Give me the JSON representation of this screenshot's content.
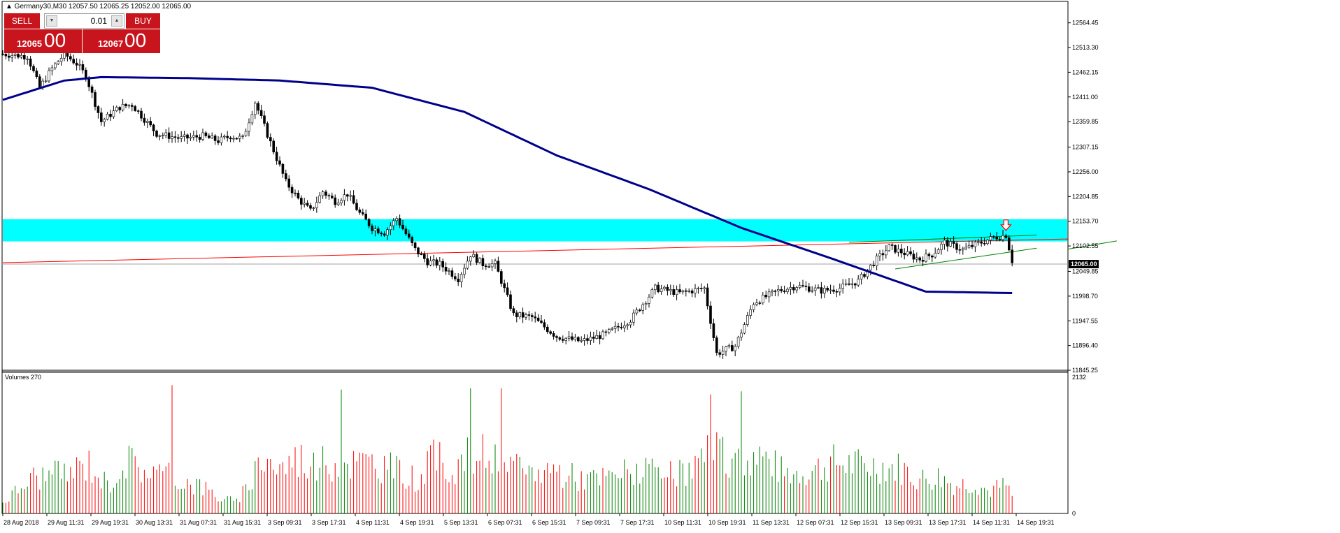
{
  "header": {
    "symbol": "Germany30,M30",
    "ohlc": "12057.50 12065.25 12052.00 12065.00"
  },
  "trade_panel": {
    "sell_label": "SELL",
    "buy_label": "BUY",
    "lot_value": "0.01",
    "sell_main": "12065",
    "sell_sup": "00",
    "buy_main": "12067",
    "buy_sup": "00"
  },
  "price_axis": {
    "labels": [
      "12564.45",
      "12513.30",
      "12462.15",
      "12411.00",
      "12359.85",
      "12307.15",
      "12256.00",
      "12204.85",
      "12153.70",
      "12102.55",
      "12049.85",
      "11998.70",
      "11947.55",
      "11896.40",
      "11845.25"
    ],
    "current_price": "12065.00"
  },
  "volume_panel": {
    "title": "Volumes 270",
    "max_label": "2132",
    "min_label": "0"
  },
  "time_axis": {
    "labels": [
      "28 Aug 2018",
      "29 Aug 11:31",
      "29 Aug 19:31",
      "30 Aug 13:31",
      "31 Aug 07:31",
      "31 Aug 15:31",
      "3 Sep 09:31",
      "3 Sep 17:31",
      "4 Sep 11:31",
      "4 Sep 19:31",
      "5 Sep 13:31",
      "6 Sep 07:31",
      "6 Sep 15:31",
      "7 Sep 09:31",
      "7 Sep 17:31",
      "10 Sep 11:31",
      "10 Sep 19:31",
      "11 Sep 13:31",
      "12 Sep 07:31",
      "12 Sep 15:31",
      "13 Sep 09:31",
      "13 Sep 17:31",
      "14 Sep 11:31",
      "14 Sep 19:31"
    ]
  },
  "colors": {
    "bull": "#008000",
    "bear": "#ff0000",
    "candle_body": "#000000",
    "ma_line": "#00008b",
    "zone": "#00ffff",
    "trendline_red": "#ff0000",
    "trendline_green": "#008000",
    "sell_buy_bg": "#c8141d"
  },
  "chart_data": {
    "type": "candlestick",
    "symbol": "Germany30",
    "timeframe": "M30",
    "ylim": [
      11845.25,
      12590
    ],
    "price_path": [
      [
        0,
        12500
      ],
      [
        8,
        12495
      ],
      [
        12,
        12430
      ],
      [
        16,
        12470
      ],
      [
        20,
        12500
      ],
      [
        24,
        12480
      ],
      [
        27,
        12455
      ],
      [
        32,
        12360
      ],
      [
        38,
        12390
      ],
      [
        42,
        12395
      ],
      [
        50,
        12335
      ],
      [
        58,
        12325
      ],
      [
        65,
        12330
      ],
      [
        70,
        12320
      ],
      [
        74,
        12330
      ],
      [
        78,
        12325
      ],
      [
        82,
        12400
      ],
      [
        88,
        12300
      ],
      [
        92,
        12235
      ],
      [
        96,
        12200
      ],
      [
        100,
        12175
      ],
      [
        104,
        12215
      ],
      [
        108,
        12195
      ],
      [
        112,
        12210
      ],
      [
        116,
        12170
      ],
      [
        120,
        12140
      ],
      [
        124,
        12130
      ],
      [
        128,
        12160
      ],
      [
        134,
        12095
      ],
      [
        138,
        12070
      ],
      [
        142,
        12065
      ],
      [
        148,
        12035
      ],
      [
        152,
        12085
      ],
      [
        156,
        12065
      ],
      [
        160,
        12065
      ],
      [
        166,
        11960
      ],
      [
        172,
        11955
      ],
      [
        180,
        11915
      ],
      [
        188,
        11905
      ],
      [
        196,
        11920
      ],
      [
        204,
        11950
      ],
      [
        212,
        12015
      ],
      [
        220,
        12005
      ],
      [
        228,
        12015
      ],
      [
        232,
        11880
      ],
      [
        238,
        11895
      ],
      [
        244,
        11985
      ],
      [
        252,
        12010
      ],
      [
        258,
        12020
      ],
      [
        266,
        12010
      ],
      [
        272,
        12015
      ],
      [
        278,
        12030
      ],
      [
        284,
        12075
      ],
      [
        288,
        12100
      ],
      [
        292,
        12090
      ],
      [
        298,
        12075
      ],
      [
        302,
        12085
      ],
      [
        306,
        12110
      ],
      [
        312,
        12095
      ],
      [
        318,
        12110
      ],
      [
        322,
        12120
      ],
      [
        326,
        12125
      ],
      [
        328,
        12072
      ]
    ],
    "volume_path": [
      [
        0,
        200
      ],
      [
        10,
        650
      ],
      [
        20,
        700
      ],
      [
        28,
        900
      ],
      [
        34,
        500
      ],
      [
        40,
        950
      ],
      [
        46,
        800
      ],
      [
        52,
        700
      ],
      [
        58,
        600
      ],
      [
        64,
        500
      ],
      [
        70,
        300
      ],
      [
        76,
        200
      ],
      [
        80,
        500
      ],
      [
        84,
        1050
      ],
      [
        90,
        800
      ],
      [
        96,
        1000
      ],
      [
        102,
        850
      ],
      [
        110,
        950
      ],
      [
        116,
        900
      ],
      [
        122,
        900
      ],
      [
        130,
        700
      ],
      [
        136,
        600
      ],
      [
        140,
        1000
      ],
      [
        146,
        800
      ],
      [
        152,
        1050
      ],
      [
        158,
        1050
      ],
      [
        162,
        900
      ],
      [
        170,
        700
      ],
      [
        178,
        800
      ],
      [
        186,
        650
      ],
      [
        194,
        600
      ],
      [
        200,
        700
      ],
      [
        206,
        800
      ],
      [
        214,
        650
      ],
      [
        222,
        700
      ],
      [
        230,
        1100
      ],
      [
        238,
        900
      ],
      [
        246,
        1050
      ],
      [
        254,
        700
      ],
      [
        262,
        750
      ],
      [
        270,
        900
      ],
      [
        278,
        850
      ],
      [
        284,
        850
      ],
      [
        292,
        800
      ],
      [
        298,
        600
      ],
      [
        304,
        650
      ],
      [
        310,
        500
      ],
      [
        316,
        550
      ],
      [
        320,
        400
      ],
      [
        326,
        500
      ],
      [
        328,
        300
      ]
    ],
    "volume_peaks": [
      [
        55,
        2050
      ],
      [
        110,
        1980
      ],
      [
        152,
        2000
      ],
      [
        162,
        2000
      ],
      [
        230,
        1900
      ],
      [
        240,
        1950
      ]
    ],
    "moving_average": {
      "type": "SMA-like",
      "points": [
        [
          0,
          12405
        ],
        [
          20,
          12445
        ],
        [
          32,
          12452
        ],
        [
          60,
          12450
        ],
        [
          90,
          12445
        ],
        [
          120,
          12430
        ],
        [
          150,
          12380
        ],
        [
          180,
          12290
        ],
        [
          210,
          12220
        ],
        [
          240,
          12140
        ],
        [
          270,
          12075
        ],
        [
          300,
          12008
        ],
        [
          328,
          12005
        ]
      ]
    },
    "supply_zone": {
      "low": 12112,
      "high": 12158
    },
    "trendlines": [
      {
        "color": "red",
        "from": [
          0,
          12068
        ],
        "to": [
          420,
          12117
        ]
      },
      {
        "color": "green",
        "from": [
          275,
          12110
        ],
        "to": [
          336,
          12125
        ]
      },
      {
        "color": "green",
        "from": [
          290,
          12055
        ],
        "to": [
          336,
          12098
        ]
      },
      {
        "color": "green",
        "from": [
          362,
          12113
        ],
        "to": [
          420,
          12096
        ]
      }
    ],
    "arrow_marker": {
      "index": 326,
      "price": 12142,
      "direction": "down"
    },
    "bar_count": 329
  }
}
